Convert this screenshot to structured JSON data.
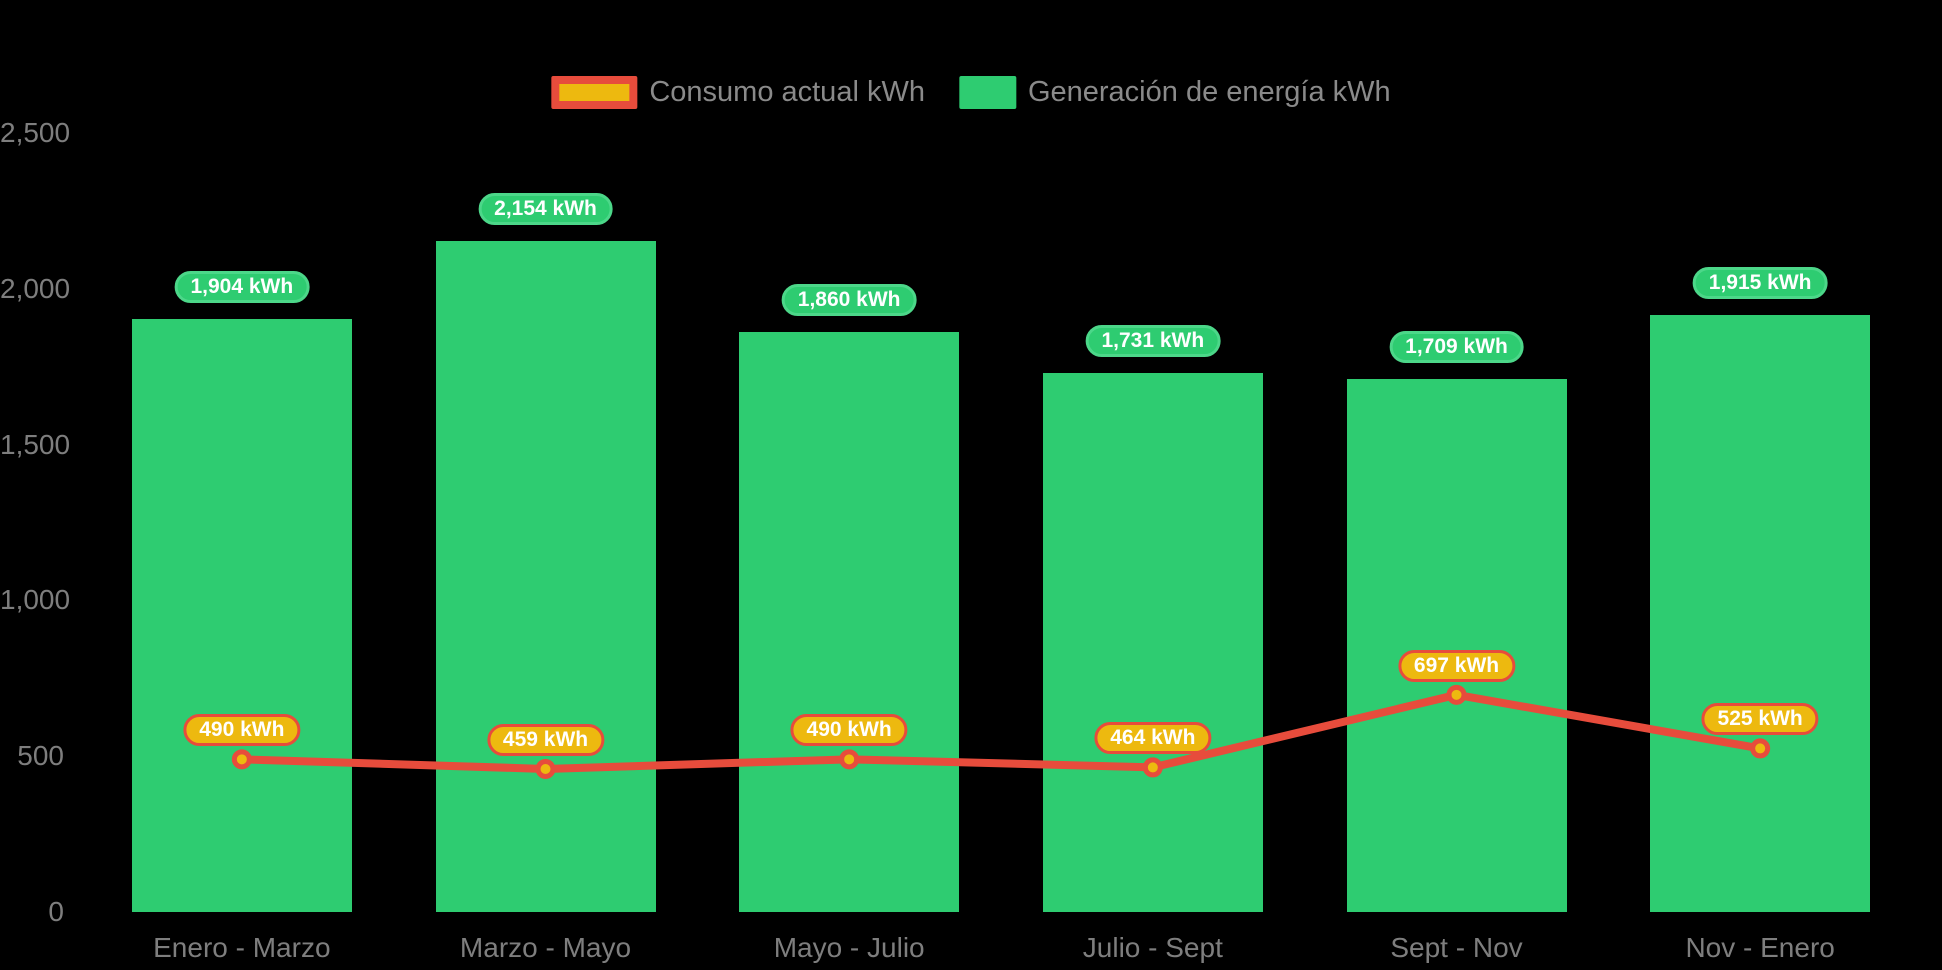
{
  "page": {
    "background_color": "#000000",
    "text_color_axis": "#7E7E7E",
    "text_color_legend": "#8A8A8A"
  },
  "legend": {
    "position": "top-center",
    "items": [
      {
        "label": "Consumo actual kWh",
        "series_type": "line",
        "swatch_fill": "#EDB90F",
        "swatch_border": "#E74C3C"
      },
      {
        "label": "Generación de energía kWh",
        "series_type": "bar",
        "swatch_fill": "#2ECC71"
      }
    ]
  },
  "chart_data": {
    "type": "bar",
    "combo": "bar + line",
    "title": "",
    "xlabel": "",
    "ylabel": "",
    "categories": [
      "Enero - Marzo",
      "Marzo - Mayo",
      "Mayo - Julio",
      "Julio - Sept",
      "Sept - Nov",
      "Nov - Enero"
    ],
    "series": [
      {
        "name": "Generación de energía kWh",
        "type": "bar",
        "color": "#2ECC71",
        "values": [
          1904,
          2154,
          1860,
          1731,
          1709,
          1915
        ],
        "labels": [
          "1,904 kWh",
          "2,154 kWh",
          "1,860 kWh",
          "1,731 kWh",
          "1,709 kWh",
          "1,915 kWh"
        ],
        "label_style": "green pill above bar, white bold text"
      },
      {
        "name": "Consumo actual kWh",
        "type": "line",
        "color": "#E74C3C",
        "marker_fill": "#EDB90F",
        "marker_border": "#E74C3C",
        "values": [
          490,
          459,
          490,
          464,
          697,
          525
        ],
        "labels": [
          "490 kWh",
          "459 kWh",
          "490 kWh",
          "464 kWh",
          "697 kWh",
          "525 kWh"
        ],
        "label_style": "gold pill with red border above point, white bold text"
      }
    ],
    "ylim": [
      0,
      2500
    ],
    "yticks": [
      0,
      500,
      1000,
      1500,
      2000,
      2500
    ],
    "ytick_labels": [
      "0",
      "500",
      "1,000",
      "1,500",
      "2,000",
      "2,500"
    ],
    "grid": false,
    "legend_position": "top"
  }
}
